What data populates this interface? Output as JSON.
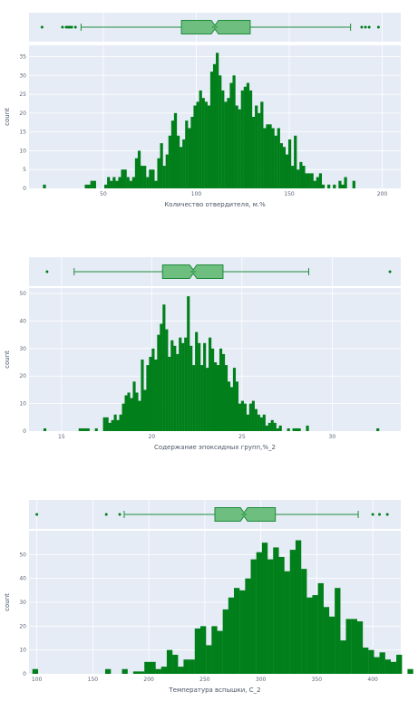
{
  "colors": {
    "plot_bg": "#e5ecf6",
    "grid": "#ffffff",
    "bar": "#007f1a",
    "box_fill": "#6ebe80",
    "box_line": "#1f8a3a"
  },
  "chart_data": [
    {
      "type": "histogram+box",
      "xlabel": "Количество отвердителя, м.%",
      "ylabel": "count",
      "xlim": [
        10,
        210
      ],
      "ylim": [
        0,
        38
      ],
      "x_ticks": [
        50,
        100,
        150,
        200
      ],
      "y_ticks": [
        0,
        5,
        10,
        15,
        20,
        25,
        30,
        35
      ],
      "bins": {
        "start": 17.5,
        "width": 1.5,
        "counts": [
          1,
          0,
          0,
          0,
          0,
          0,
          0,
          0,
          0,
          0,
          0,
          0,
          0,
          0,
          0,
          1,
          1,
          2,
          2,
          0,
          0,
          0,
          1,
          3,
          2,
          3,
          2,
          3,
          5,
          5,
          3,
          2,
          3,
          8,
          10,
          6,
          6,
          3,
          5,
          5,
          2,
          8,
          12,
          6,
          9,
          14,
          18,
          20,
          14,
          11,
          13,
          18,
          16,
          19,
          22,
          23,
          26,
          24,
          23,
          22,
          31,
          33,
          36,
          30,
          26,
          23,
          24,
          28,
          30,
          22,
          21,
          26,
          27,
          28,
          26,
          19,
          22,
          20,
          23,
          16,
          17,
          17,
          16,
          14,
          16,
          12,
          11,
          9,
          13,
          6,
          14,
          5,
          7,
          6,
          4,
          4,
          4,
          2,
          3,
          4,
          1,
          0,
          1,
          0,
          1,
          0,
          2,
          1,
          3,
          0,
          0,
          2
        ]
      },
      "box": {
        "q1": 92,
        "median": 110,
        "q3": 129,
        "whisker_low": 38,
        "whisker_high": 183,
        "outliers": [
          17,
          28,
          30,
          31,
          32,
          33,
          35,
          189,
          191,
          193,
          198
        ]
      }
    },
    {
      "type": "histogram+box",
      "xlabel": "Содержание эпоксидных групп,%_2",
      "ylabel": "count",
      "xlim": [
        13.2,
        33.8
      ],
      "ylim": [
        0,
        52
      ],
      "x_ticks": [
        15,
        20,
        25,
        30
      ],
      "y_ticks": [
        0,
        10,
        20,
        30,
        40,
        50
      ],
      "bins": {
        "start": 14,
        "width": 0.15,
        "counts": [
          1,
          0,
          0,
          0,
          0,
          0,
          0,
          0,
          0,
          0,
          0,
          0,
          0,
          1,
          1,
          1,
          1,
          0,
          0,
          1,
          0,
          0,
          5,
          5,
          3,
          4,
          6,
          4,
          6,
          10,
          13,
          14,
          12,
          18,
          14,
          11,
          26,
          15,
          24,
          27,
          30,
          26,
          35,
          39,
          46,
          37,
          27,
          33,
          31,
          28,
          34,
          32,
          34,
          49,
          31,
          24,
          36,
          32,
          24,
          32,
          23,
          34,
          30,
          25,
          24,
          30,
          28,
          24,
          18,
          16,
          23,
          18,
          10,
          11,
          10,
          6,
          10,
          11,
          8,
          6,
          5,
          6,
          2,
          3,
          4,
          3,
          1,
          2,
          0,
          0,
          1,
          0,
          1,
          1,
          1,
          0,
          0,
          2,
          0,
          0,
          0,
          0,
          0,
          0,
          0,
          0,
          0,
          0,
          0,
          0,
          0,
          0,
          0,
          0,
          0,
          0,
          0,
          0,
          0,
          0,
          0,
          0,
          0,
          1
        ]
      },
      "box": {
        "q1": 20.6,
        "median": 22.3,
        "q3": 23.95,
        "whisker_low": 15.7,
        "whisker_high": 28.7,
        "outliers": [
          14.2,
          33.2
        ]
      }
    },
    {
      "type": "histogram+box",
      "xlabel": "Температура вспышки, С_2",
      "ylabel": "count",
      "xlim": [
        93,
        425
      ],
      "ylim": [
        0,
        60
      ],
      "x_ticks": [
        100,
        150,
        200,
        250,
        300,
        350,
        400
      ],
      "y_ticks": [
        0,
        10,
        20,
        30,
        40,
        50
      ],
      "bins": {
        "start": 96,
        "width": 5,
        "counts": [
          2,
          0,
          0,
          0,
          0,
          0,
          0,
          0,
          0,
          0,
          0,
          0,
          0,
          2,
          0,
          0,
          2,
          0,
          1,
          1,
          5,
          5,
          2,
          3,
          10,
          8,
          3,
          6,
          6,
          19,
          20,
          12,
          20,
          18,
          27,
          32,
          36,
          35,
          40,
          48,
          51,
          55,
          48,
          53,
          49,
          43,
          52,
          56,
          44,
          32,
          33,
          38,
          28,
          24,
          36,
          14,
          23,
          23,
          22,
          11,
          10,
          7,
          9,
          6,
          5,
          8,
          0,
          2,
          0,
          0,
          1,
          0,
          2
        ]
      },
      "box": {
        "q1": 259,
        "median": 285,
        "q3": 313,
        "whisker_low": 178,
        "whisker_high": 387,
        "outliers": [
          100,
          162,
          174,
          400,
          406,
          413
        ]
      }
    }
  ]
}
